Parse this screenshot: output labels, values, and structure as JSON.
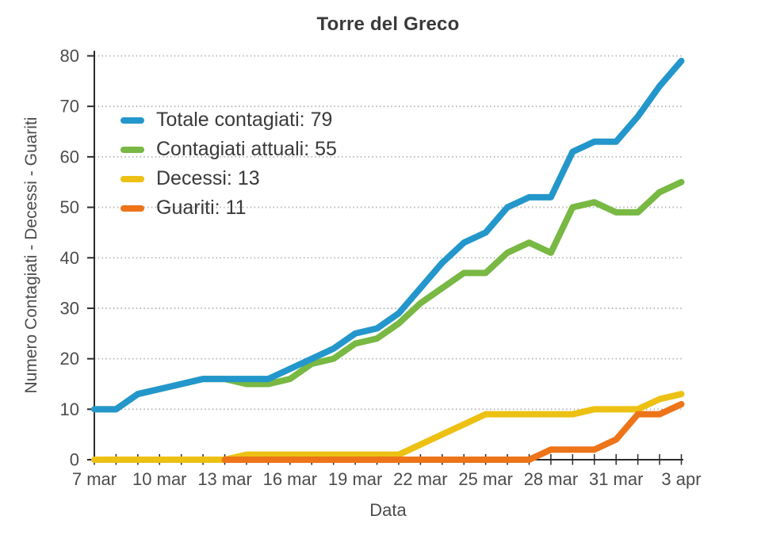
{
  "chart_data": {
    "type": "line",
    "title": "Torre del Greco",
    "xlabel": "Data",
    "ylabel": "Numero Contagiati - Decessi - Guariti",
    "ylim": [
      0,
      80
    ],
    "ytick_step": 10,
    "xtick_label_every": 3,
    "grid": "horizontal-dotted",
    "legend_position": "inside-top-left",
    "categories": [
      "7 mar",
      "8 mar",
      "9 mar",
      "10 mar",
      "11 mar",
      "12 mar",
      "13 mar",
      "14 mar",
      "15 mar",
      "16 mar",
      "17 mar",
      "18 mar",
      "19 mar",
      "20 mar",
      "21 mar",
      "22 mar",
      "23 mar",
      "24 mar",
      "25 mar",
      "26 mar",
      "27 mar",
      "28 mar",
      "29 mar",
      "30 mar",
      "31 mar",
      "1 apr",
      "2 apr",
      "3 apr"
    ],
    "series": [
      {
        "name": "Totale contagiati",
        "legend_label": "Totale contagiati: 79",
        "color": "#2397cb",
        "values": [
          10,
          10,
          13,
          14,
          15,
          16,
          16,
          16,
          16,
          18,
          20,
          22,
          25,
          26,
          29,
          34,
          39,
          43,
          45,
          50,
          52,
          52,
          61,
          63,
          63,
          68,
          74,
          79
        ]
      },
      {
        "name": "Contagiati attuali",
        "legend_label": "Contagiati attuali: 55",
        "color": "#78b843",
        "values": [
          10,
          10,
          13,
          14,
          15,
          16,
          16,
          15,
          15,
          16,
          19,
          20,
          23,
          24,
          27,
          31,
          34,
          37,
          37,
          41,
          43,
          41,
          50,
          51,
          49,
          49,
          53,
          55
        ]
      },
      {
        "name": "Decessi",
        "legend_label": "Decessi: 13",
        "color": "#edc113",
        "values": [
          0,
          0,
          0,
          0,
          0,
          0,
          0,
          1,
          1,
          1,
          1,
          1,
          1,
          1,
          1,
          3,
          5,
          7,
          9,
          9,
          9,
          9,
          9,
          10,
          10,
          10,
          12,
          13
        ]
      },
      {
        "name": "Guariti",
        "legend_label": "Guariti: 11",
        "color": "#ed7418",
        "values": [
          null,
          null,
          null,
          null,
          null,
          null,
          0,
          0,
          0,
          0,
          0,
          0,
          0,
          0,
          0,
          0,
          0,
          0,
          0,
          0,
          0,
          2,
          2,
          2,
          4,
          9,
          9,
          11
        ]
      }
    ],
    "draw_order": [
      1,
      0,
      2,
      3
    ],
    "colors": {
      "axis": "#2b2b2b",
      "grid": "#b0b0b0",
      "tick_text": "#4c4c4c",
      "title_text": "#3a3a3a"
    }
  }
}
